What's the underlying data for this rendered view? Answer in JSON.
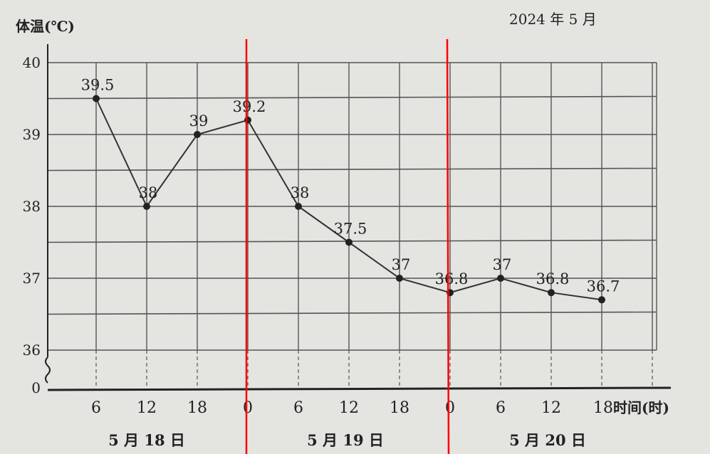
{
  "chart_data": {
    "type": "line",
    "ylabel": "体温(℃)",
    "subtitle": "2024 年 5 月",
    "xlabel": "时间(时)",
    "x_ticks": [
      "6",
      "12",
      "18",
      "0",
      "6",
      "12",
      "18",
      "0",
      "6",
      "12",
      "18"
    ],
    "day_labels": [
      "5 月 18 日",
      "5 月 19 日",
      "5 月 20 日"
    ],
    "y_ticks": [
      "0",
      "36",
      "37",
      "38",
      "39",
      "40"
    ],
    "ylim": [
      36,
      40
    ],
    "y_axis_break": true,
    "grid": true,
    "values": [
      39.5,
      38,
      39,
      39.2,
      38,
      37.5,
      37,
      36.8,
      37,
      36.8,
      36.7
    ],
    "data_labels": [
      "39.5",
      "38",
      "39",
      "39.2",
      "38",
      "37.5",
      "37",
      "36.8",
      "37",
      "36.8",
      "36.7"
    ],
    "colors": {
      "line": "#333333",
      "grid": "#555555",
      "annotation_lines": "#ff0000",
      "paper": "#e4e4e1"
    }
  }
}
